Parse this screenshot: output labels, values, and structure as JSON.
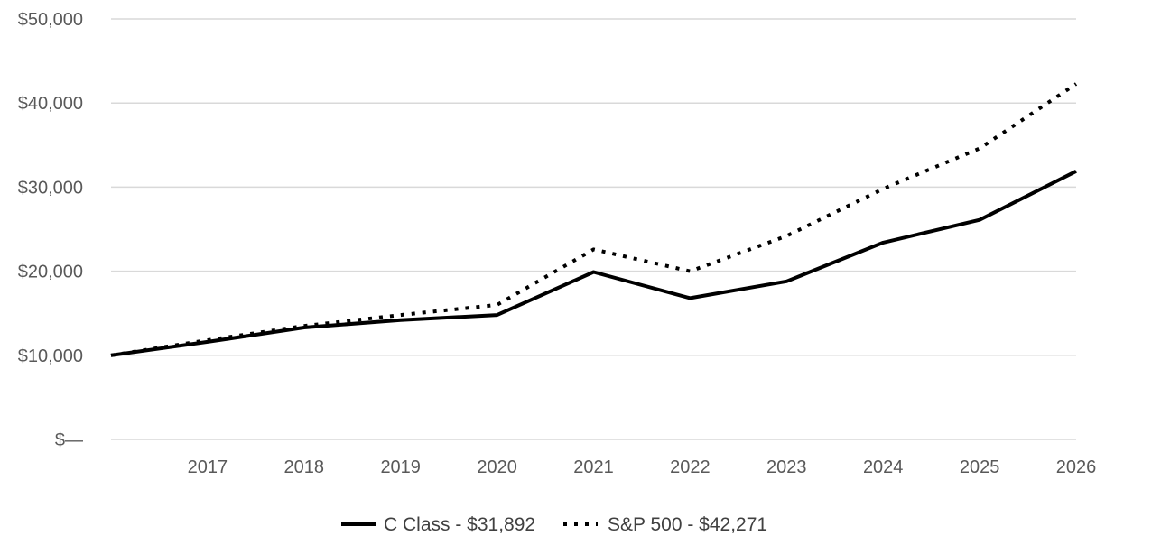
{
  "chart_data": {
    "type": "line",
    "x": [
      "2016",
      "2017",
      "2018",
      "2019",
      "2020",
      "2021",
      "2022",
      "2023",
      "2024",
      "2025",
      "2026"
    ],
    "x_tick_labels": [
      "2017",
      "2018",
      "2019",
      "2020",
      "2021",
      "2022",
      "2023",
      "2024",
      "2025",
      "2026"
    ],
    "y_tick_labels": [
      "$50,000",
      "$40,000",
      "$30,000",
      "$20,000",
      "$10,000",
      "$—"
    ],
    "ylim": [
      0,
      50000
    ],
    "y_ticks": [
      50000,
      40000,
      30000,
      20000,
      10000,
      0
    ],
    "grid": "horizontal",
    "legend_position": "bottom",
    "series": [
      {
        "name": "C Class - $31,892",
        "style": "solid",
        "color": "#000000",
        "values": [
          10000,
          11600,
          13300,
          14200,
          14800,
          19900,
          16800,
          18800,
          23400,
          26100,
          31892
        ]
      },
      {
        "name": "S&P 500 - $42,271",
        "style": "dotted",
        "color": "#000000",
        "values": [
          10000,
          11800,
          13500,
          14800,
          16000,
          22600,
          20000,
          24200,
          29800,
          34600,
          42271
        ]
      }
    ]
  }
}
